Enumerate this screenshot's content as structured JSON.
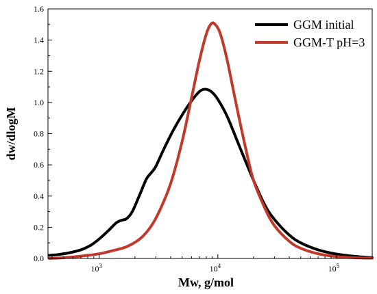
{
  "chart_data": {
    "type": "line",
    "xscale": "log",
    "xlim": [
      370,
      200000
    ],
    "ylim": [
      0,
      1.6
    ],
    "xlabel": "Mw, g/mol",
    "ylabel": "dw/dlogM",
    "grid": false,
    "legend_position": "top-right",
    "x_ticks": [
      {
        "value": 1000,
        "base": "10",
        "exp": "3"
      },
      {
        "value": 10000,
        "base": "10",
        "exp": "4"
      },
      {
        "value": 100000,
        "base": "10",
        "exp": "5"
      }
    ],
    "y_ticks": [
      {
        "value": 0.0,
        "label": "0.0"
      },
      {
        "value": 0.2,
        "label": "0.2"
      },
      {
        "value": 0.4,
        "label": "0.4"
      },
      {
        "value": 0.6,
        "label": "0.6"
      },
      {
        "value": 0.8,
        "label": "0.8"
      },
      {
        "value": 1.0,
        "label": "1.0"
      },
      {
        "value": 1.2,
        "label": "1.2"
      },
      {
        "value": 1.4,
        "label": "1.4"
      },
      {
        "value": 1.6,
        "label": "1.6"
      }
    ],
    "series": [
      {
        "name": "GGM initial",
        "color": "#000000",
        "points": [
          [
            380,
            0.02
          ],
          [
            450,
            0.025
          ],
          [
            550,
            0.035
          ],
          [
            700,
            0.055
          ],
          [
            850,
            0.085
          ],
          [
            1000,
            0.125
          ],
          [
            1200,
            0.18
          ],
          [
            1400,
            0.23
          ],
          [
            1550,
            0.245
          ],
          [
            1700,
            0.255
          ],
          [
            1900,
            0.3
          ],
          [
            2200,
            0.41
          ],
          [
            2500,
            0.51
          ],
          [
            2750,
            0.55
          ],
          [
            3000,
            0.59
          ],
          [
            3500,
            0.7
          ],
          [
            4200,
            0.82
          ],
          [
            5000,
            0.92
          ],
          [
            6000,
            1.01
          ],
          [
            7000,
            1.07
          ],
          [
            7800,
            1.085
          ],
          [
            8800,
            1.07
          ],
          [
            10000,
            1.02
          ],
          [
            12000,
            0.91
          ],
          [
            15000,
            0.73
          ],
          [
            20000,
            0.5
          ],
          [
            25000,
            0.34
          ],
          [
            30000,
            0.25
          ],
          [
            40000,
            0.15
          ],
          [
            50000,
            0.1
          ],
          [
            70000,
            0.055
          ],
          [
            100000,
            0.028
          ],
          [
            150000,
            0.012
          ],
          [
            200000,
            0.005
          ]
        ]
      },
      {
        "name": "GGM-T pH=3",
        "color": "#c0392b",
        "points": [
          [
            380,
            0.0
          ],
          [
            500,
            0.005
          ],
          [
            700,
            0.015
          ],
          [
            1000,
            0.03
          ],
          [
            1300,
            0.05
          ],
          [
            1700,
            0.075
          ],
          [
            2200,
            0.125
          ],
          [
            2700,
            0.2
          ],
          [
            3200,
            0.3
          ],
          [
            4000,
            0.48
          ],
          [
            5000,
            0.75
          ],
          [
            6000,
            1.03
          ],
          [
            7000,
            1.27
          ],
          [
            8000,
            1.44
          ],
          [
            8800,
            1.505
          ],
          [
            9500,
            1.5
          ],
          [
            10500,
            1.44
          ],
          [
            12000,
            1.27
          ],
          [
            14000,
            1.02
          ],
          [
            17000,
            0.72
          ],
          [
            20000,
            0.5
          ],
          [
            25000,
            0.32
          ],
          [
            30000,
            0.21
          ],
          [
            40000,
            0.11
          ],
          [
            50000,
            0.065
          ],
          [
            70000,
            0.03
          ],
          [
            100000,
            0.012
          ],
          [
            150000,
            0.004
          ],
          [
            200000,
            0.002
          ]
        ]
      }
    ]
  }
}
